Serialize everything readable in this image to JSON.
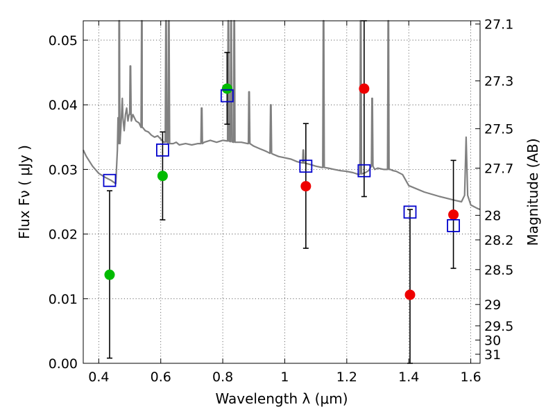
{
  "chart_data": {
    "type": "scatter",
    "xlabel": "Wavelength  λ (μm)",
    "ylabel": "Flux  Fν  ( μJy )",
    "y2label": "Magnitude (AB)",
    "xlim": [
      0.35,
      1.63
    ],
    "ylim": [
      0.0,
      0.053
    ],
    "grid": true,
    "x_ticks": [
      0.4,
      0.6,
      0.8,
      1.0,
      1.2,
      1.4,
      1.6
    ],
    "x_tick_labels": [
      "0.4",
      "0.6",
      "0.8",
      "1",
      "1.2",
      "1.4",
      "1.6"
    ],
    "y_ticks": [
      0.0,
      0.01,
      0.02,
      0.03,
      0.04,
      0.05
    ],
    "y_tick_labels": [
      "0.00",
      "0.01",
      "0.02",
      "0.03",
      "0.04",
      "0.05"
    ],
    "magnitude_ticks": [
      {
        "label": "27.1",
        "flux": 0.0525
      },
      {
        "label": "27.3",
        "flux": 0.0437
      },
      {
        "label": "27.5",
        "flux": 0.0363
      },
      {
        "label": "27.7",
        "flux": 0.0302
      },
      {
        "label": "28",
        "flux": 0.0229
      },
      {
        "label": "28.2",
        "flux": 0.0191
      },
      {
        "label": "28.5",
        "flux": 0.0145
      },
      {
        "label": "29",
        "flux": 0.0091
      },
      {
        "label": "29.5",
        "flux": 0.0058
      },
      {
        "label": "30",
        "flux": 0.0036
      },
      {
        "label": "31",
        "flux": 0.0014
      }
    ],
    "series": [
      {
        "marker": "circle",
        "color": "#00bb00",
        "points": [
          {
            "x": 0.435,
            "y": 0.0137,
            "err_low": 0.0008,
            "err_high": 0.0267
          },
          {
            "x": 0.606,
            "y": 0.029,
            "err_low": 0.0222,
            "err_high": 0.0358
          },
          {
            "x": 0.814,
            "y": 0.0425,
            "err_low": 0.037,
            "err_high": 0.0481
          }
        ]
      },
      {
        "marker": "circle",
        "color": "#ee0000",
        "points": [
          {
            "x": 1.068,
            "y": 0.0274,
            "err_low": 0.0178,
            "err_high": 0.0371
          },
          {
            "x": 1.256,
            "y": 0.0425,
            "err_low": 0.0258,
            "err_high": 0.053
          },
          {
            "x": 1.404,
            "y": 0.0106,
            "err_low": 0.0,
            "err_high": 0.0238
          },
          {
            "x": 1.544,
            "y": 0.023,
            "err_low": 0.0147,
            "err_high": 0.0314
          }
        ]
      },
      {
        "marker": "open-square",
        "color": "#0000cc",
        "points": [
          {
            "x": 0.435,
            "y": 0.0283
          },
          {
            "x": 0.606,
            "y": 0.033
          },
          {
            "x": 0.814,
            "y": 0.0414
          },
          {
            "x": 1.068,
            "y": 0.0305
          },
          {
            "x": 1.256,
            "y": 0.0298
          },
          {
            "x": 1.404,
            "y": 0.0234
          },
          {
            "x": 1.544,
            "y": 0.0213
          }
        ]
      },
      {
        "type": "line",
        "color": "#808080",
        "x": [
          0.35,
          0.36,
          0.38,
          0.4,
          0.42,
          0.44,
          0.455,
          0.46,
          0.462,
          0.465,
          0.468,
          0.472,
          0.476,
          0.478,
          0.482,
          0.486,
          0.49,
          0.494,
          0.498,
          0.5,
          0.505,
          0.51,
          0.515,
          0.52,
          0.53,
          0.54,
          0.55,
          0.56,
          0.57,
          0.58,
          0.59,
          0.6,
          0.61,
          0.62,
          0.63,
          0.64,
          0.65,
          0.66,
          0.68,
          0.7,
          0.72,
          0.74,
          0.76,
          0.78,
          0.8,
          0.82,
          0.84,
          0.86,
          0.88,
          0.9,
          0.92,
          0.94,
          0.96,
          0.98,
          1.0,
          1.02,
          1.04,
          1.06,
          1.08,
          1.1,
          1.12,
          1.14,
          1.16,
          1.18,
          1.2,
          1.22,
          1.24,
          1.26,
          1.27,
          1.28,
          1.29,
          1.3,
          1.32,
          1.34,
          1.35,
          1.36,
          1.38,
          1.4,
          1.45,
          1.5,
          1.55,
          1.57,
          1.58,
          1.585,
          1.59,
          1.6,
          1.62,
          1.63
        ],
        "y": [
          0.033,
          0.032,
          0.0305,
          0.0294,
          0.0288,
          0.0283,
          0.0278,
          0.033,
          0.038,
          0.036,
          0.034,
          0.037,
          0.041,
          0.038,
          0.036,
          0.0385,
          0.0395,
          0.0375,
          0.0385,
          0.039,
          0.0375,
          0.0385,
          0.038,
          0.0375,
          0.0372,
          0.0365,
          0.036,
          0.0358,
          0.0353,
          0.035,
          0.0352,
          0.0347,
          0.0342,
          0.0345,
          0.034,
          0.034,
          0.0342,
          0.0338,
          0.034,
          0.0338,
          0.034,
          0.0342,
          0.0345,
          0.0342,
          0.0345,
          0.0344,
          0.0342,
          0.0342,
          0.034,
          0.0336,
          0.0332,
          0.0328,
          0.0324,
          0.032,
          0.0318,
          0.0316,
          0.0312,
          0.031,
          0.0308,
          0.0305,
          0.0303,
          0.0302,
          0.03,
          0.0298,
          0.0297,
          0.0295,
          0.0292,
          0.0295,
          0.0298,
          0.033,
          0.03,
          0.0302,
          0.03,
          0.03,
          0.0298,
          0.0297,
          0.0292,
          0.0275,
          0.0265,
          0.0258,
          0.0252,
          0.025,
          0.026,
          0.035,
          0.026,
          0.0245,
          0.024,
          0.0238
        ],
        "spikes": [
          {
            "x": 0.466,
            "top": 0.053,
            "base": 0.034
          },
          {
            "x": 0.502,
            "top": 0.046,
            "base": 0.0385
          },
          {
            "x": 0.539,
            "top": 0.053,
            "base": 0.0365
          },
          {
            "x": 0.617,
            "top": 0.053,
            "base": 0.0342
          },
          {
            "x": 0.626,
            "top": 0.053,
            "base": 0.034
          },
          {
            "x": 0.732,
            "top": 0.0395,
            "base": 0.034
          },
          {
            "x": 0.818,
            "top": 0.053,
            "base": 0.0344
          },
          {
            "x": 0.827,
            "top": 0.053,
            "base": 0.0343
          },
          {
            "x": 0.837,
            "top": 0.053,
            "base": 0.0342
          },
          {
            "x": 0.885,
            "top": 0.042,
            "base": 0.034
          },
          {
            "x": 0.955,
            "top": 0.04,
            "base": 0.0325
          },
          {
            "x": 1.06,
            "top": 0.033,
            "base": 0.031
          },
          {
            "x": 1.125,
            "top": 0.053,
            "base": 0.0303
          },
          {
            "x": 1.245,
            "top": 0.053,
            "base": 0.0293
          },
          {
            "x": 1.282,
            "top": 0.041,
            "base": 0.0305
          },
          {
            "x": 1.334,
            "top": 0.053,
            "base": 0.03
          }
        ]
      }
    ]
  }
}
